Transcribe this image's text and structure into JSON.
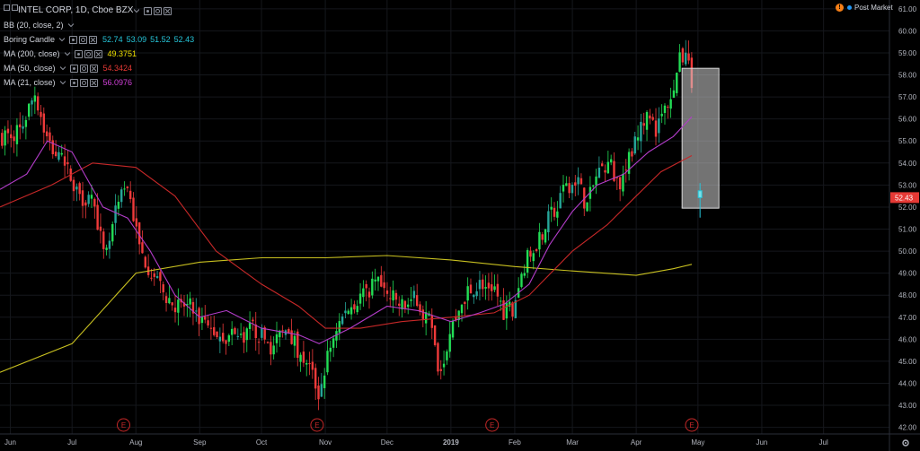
{
  "header": {
    "symbol_title": "INTEL CORP, 1D, Cboe BZX",
    "post_market_label": "Post Market"
  },
  "legend": [
    {
      "name": "BB (20, close, 2)",
      "values": []
    },
    {
      "name": "Boring Candle",
      "values": [
        "52.74",
        "53.09",
        "51.52",
        "52.43"
      ],
      "color": "#26c6da"
    },
    {
      "name": "MA (200, close)",
      "values": [
        "49.3751"
      ],
      "color": "#f0e200"
    },
    {
      "name": "MA (50, close)",
      "values": [
        "54.3424"
      ],
      "color": "#e53935"
    },
    {
      "name": "MA (21, close)",
      "values": [
        "56.0976"
      ],
      "color": "#d040d8"
    }
  ],
  "colors": {
    "up_candle": "#26a69a",
    "up_candle_bright": "#22dd55",
    "down_candle": "#ef3a3a",
    "ma200": "#c8c020",
    "ma50": "#c62828",
    "ma21": "#b23cc8",
    "last_price_bg": "#e53935",
    "earnings": "#c62828"
  },
  "chart_data": {
    "type": "candlestick",
    "title": "INTEL CORP, 1D, Cboe BZX",
    "y_axis": {
      "ticks": [
        "61.00",
        "60.00",
        "59.00",
        "58.00",
        "57.00",
        "56.00",
        "55.00",
        "54.00",
        "53.00",
        "52.00",
        "51.00",
        "50.00",
        "49.00",
        "48.00",
        "47.00",
        "46.00",
        "45.00",
        "44.00",
        "43.00",
        "42.00"
      ],
      "range": [
        41.7,
        61.4
      ],
      "last_price_label": "52.43",
      "last_price": 52.43
    },
    "x_axis": {
      "labels": [
        "Jun",
        "Jul",
        "Aug",
        "Sep",
        "Oct",
        "Nov",
        "Dec",
        "2019",
        "Feb",
        "Mar",
        "Apr",
        "May",
        "Jun",
        "Jul"
      ],
      "range_days": [
        -5,
        427
      ],
      "label_days": [
        0,
        30,
        61,
        92,
        122,
        153,
        183,
        214,
        245,
        273,
        304,
        334,
        365,
        395
      ]
    },
    "price_path_close": [
      [
        -5,
        55.2
      ],
      [
        5,
        55.5
      ],
      [
        12,
        57.2
      ],
      [
        18,
        55.0
      ],
      [
        25,
        54.0
      ],
      [
        30,
        53.3
      ],
      [
        35,
        52.5
      ],
      [
        40,
        52.5
      ],
      [
        46,
        49.5
      ],
      [
        52,
        52.0
      ],
      [
        57,
        53.0
      ],
      [
        63,
        50.0
      ],
      [
        68,
        49.2
      ],
      [
        75,
        48.0
      ],
      [
        80,
        47.6
      ],
      [
        88,
        47.4
      ],
      [
        95,
        46.5
      ],
      [
        102,
        46.2
      ],
      [
        110,
        46.0
      ],
      [
        117,
        46.5
      ],
      [
        122,
        46.2
      ],
      [
        128,
        45.5
      ],
      [
        134,
        46.8
      ],
      [
        140,
        45.5
      ],
      [
        145,
        44.8
      ],
      [
        150,
        43.5
      ],
      [
        153,
        44.8
      ],
      [
        158,
        46.5
      ],
      [
        165,
        47.5
      ],
      [
        172,
        48.2
      ],
      [
        178,
        48.5
      ],
      [
        183,
        48.0
      ],
      [
        190,
        47.5
      ],
      [
        197,
        47.8
      ],
      [
        205,
        46.5
      ],
      [
        208,
        44.2
      ],
      [
        214,
        46.5
      ],
      [
        222,
        48.2
      ],
      [
        228,
        48.5
      ],
      [
        235,
        48.4
      ],
      [
        240,
        47.2
      ],
      [
        244,
        47.4
      ],
      [
        250,
        49.5
      ],
      [
        256,
        50.5
      ],
      [
        262,
        51.5
      ],
      [
        268,
        52.5
      ],
      [
        274,
        53.5
      ],
      [
        280,
        52.0
      ],
      [
        285,
        53.5
      ],
      [
        291,
        54.0
      ],
      [
        296,
        53.0
      ],
      [
        300,
        54.0
      ],
      [
        304,
        55.3
      ],
      [
        310,
        56.0
      ],
      [
        314,
        55.5
      ],
      [
        317,
        56.2
      ],
      [
        321,
        57.2
      ],
      [
        324,
        58.3
      ],
      [
        326,
        58.8
      ],
      [
        328,
        58.9
      ],
      [
        331,
        57.8
      ],
      [
        335,
        52.5
      ]
    ],
    "ma200": [
      [
        -5,
        44.5
      ],
      [
        30,
        45.8
      ],
      [
        61,
        49.0
      ],
      [
        92,
        49.5
      ],
      [
        122,
        49.7
      ],
      [
        153,
        49.7
      ],
      [
        183,
        49.8
      ],
      [
        214,
        49.6
      ],
      [
        245,
        49.3
      ],
      [
        273,
        49.1
      ],
      [
        304,
        48.9
      ],
      [
        322,
        49.2
      ],
      [
        331,
        49.4
      ]
    ],
    "ma50": [
      [
        -5,
        52.0
      ],
      [
        20,
        53.0
      ],
      [
        40,
        54.0
      ],
      [
        61,
        53.8
      ],
      [
        80,
        52.5
      ],
      [
        100,
        50.0
      ],
      [
        122,
        48.5
      ],
      [
        140,
        47.5
      ],
      [
        153,
        46.5
      ],
      [
        170,
        46.5
      ],
      [
        190,
        46.8
      ],
      [
        214,
        47.0
      ],
      [
        235,
        47.2
      ],
      [
        252,
        48.0
      ],
      [
        273,
        50.0
      ],
      [
        290,
        51.2
      ],
      [
        304,
        52.5
      ],
      [
        316,
        53.6
      ],
      [
        331,
        54.34
      ]
    ],
    "ma21": [
      [
        -5,
        52.8
      ],
      [
        8,
        53.5
      ],
      [
        18,
        55.0
      ],
      [
        30,
        54.5
      ],
      [
        45,
        52.0
      ],
      [
        57,
        51.5
      ],
      [
        68,
        50.0
      ],
      [
        80,
        48.0
      ],
      [
        92,
        47.0
      ],
      [
        105,
        47.3
      ],
      [
        122,
        46.5
      ],
      [
        140,
        46.2
      ],
      [
        150,
        45.8
      ],
      [
        165,
        46.5
      ],
      [
        183,
        47.5
      ],
      [
        198,
        47.3
      ],
      [
        214,
        46.8
      ],
      [
        228,
        47.2
      ],
      [
        240,
        47.6
      ],
      [
        252,
        48.5
      ],
      [
        262,
        50.3
      ],
      [
        273,
        51.8
      ],
      [
        285,
        53.0
      ],
      [
        298,
        53.5
      ],
      [
        310,
        54.5
      ],
      [
        322,
        55.2
      ],
      [
        331,
        56.1
      ]
    ],
    "earnings_label": "E",
    "earnings_days": [
      55,
      149,
      234,
      331
    ],
    "last_bar": {
      "open": 52.74,
      "high": 53.09,
      "low": 51.52,
      "close": 52.43,
      "day": 335
    }
  }
}
